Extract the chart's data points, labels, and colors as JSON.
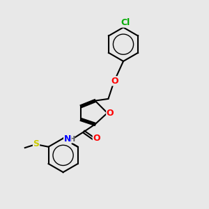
{
  "bg_color": "#e8e8e8",
  "bond_color": "#000000",
  "bond_width": 1.5,
  "atom_colors": {
    "O": "#ff0000",
    "N": "#0000ff",
    "S": "#cccc00",
    "Cl": "#00aa00",
    "C": "#000000",
    "H": "#555555"
  },
  "font_size": 8,
  "fig_size": [
    3.0,
    3.0
  ],
  "dpi": 100
}
